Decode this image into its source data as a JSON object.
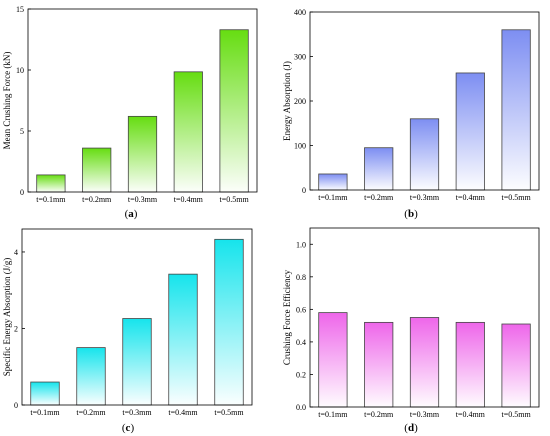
{
  "chart_data": [
    {
      "type": "bar",
      "panel_label": "(a)",
      "categories": [
        "t=0.1mm",
        "t=0.2mm",
        "t=0.3mm",
        "t=0.4mm",
        "t=0.5mm"
      ],
      "values": [
        1.4,
        3.6,
        6.2,
        9.85,
        13.3
      ],
      "ylabel": "Mean Crushing Force (kN)",
      "xlabel": "",
      "ylim": [
        0,
        15
      ],
      "yticks": [
        0,
        5,
        10,
        15
      ],
      "grid": false,
      "color": "#66dd11"
    },
    {
      "type": "bar",
      "panel_label": "(b)",
      "categories": [
        "t=0.1mm",
        "t=0.2mm",
        "t=0.3mm",
        "t=0.4mm",
        "t=0.5mm"
      ],
      "values": [
        36,
        95,
        160,
        263,
        360
      ],
      "ylabel": "Energy Absorption (J)",
      "xlabel": "",
      "ylim": [
        0,
        400
      ],
      "yticks": [
        0,
        100,
        200,
        300,
        400
      ],
      "grid": false,
      "color": "#7d8ef2"
    },
    {
      "type": "bar",
      "panel_label": "(c)",
      "categories": [
        "t=0.1mm",
        "t=0.2mm",
        "t=0.3mm",
        "t=0.4mm",
        "t=0.5mm"
      ],
      "values": [
        0.6,
        1.5,
        2.26,
        3.42,
        4.33
      ],
      "ylabel": "Specific Energy Absorption (J/g)",
      "xlabel": "",
      "ylim": [
        0,
        4.6
      ],
      "yticks": [
        0,
        2,
        4
      ],
      "grid": false,
      "color": "#16e4ec"
    },
    {
      "type": "bar",
      "panel_label": "(d)",
      "categories": [
        "t=0.1mm",
        "t=0.2mm",
        "t=0.3mm",
        "t=0.4mm",
        "t=0.5mm"
      ],
      "values": [
        0.58,
        0.52,
        0.55,
        0.52,
        0.51
      ],
      "ylabel": "Crushing Force Efficiency",
      "xlabel": "",
      "ylim": [
        0,
        1.1
      ],
      "yticks": [
        0.0,
        0.2,
        0.4,
        0.6,
        0.8,
        1.0
      ],
      "ytick_labels": [
        "0.0",
        "0.2",
        "0.4",
        "0.6",
        "0.8",
        "1.0"
      ],
      "grid": false,
      "color": "#ee66ea"
    }
  ]
}
